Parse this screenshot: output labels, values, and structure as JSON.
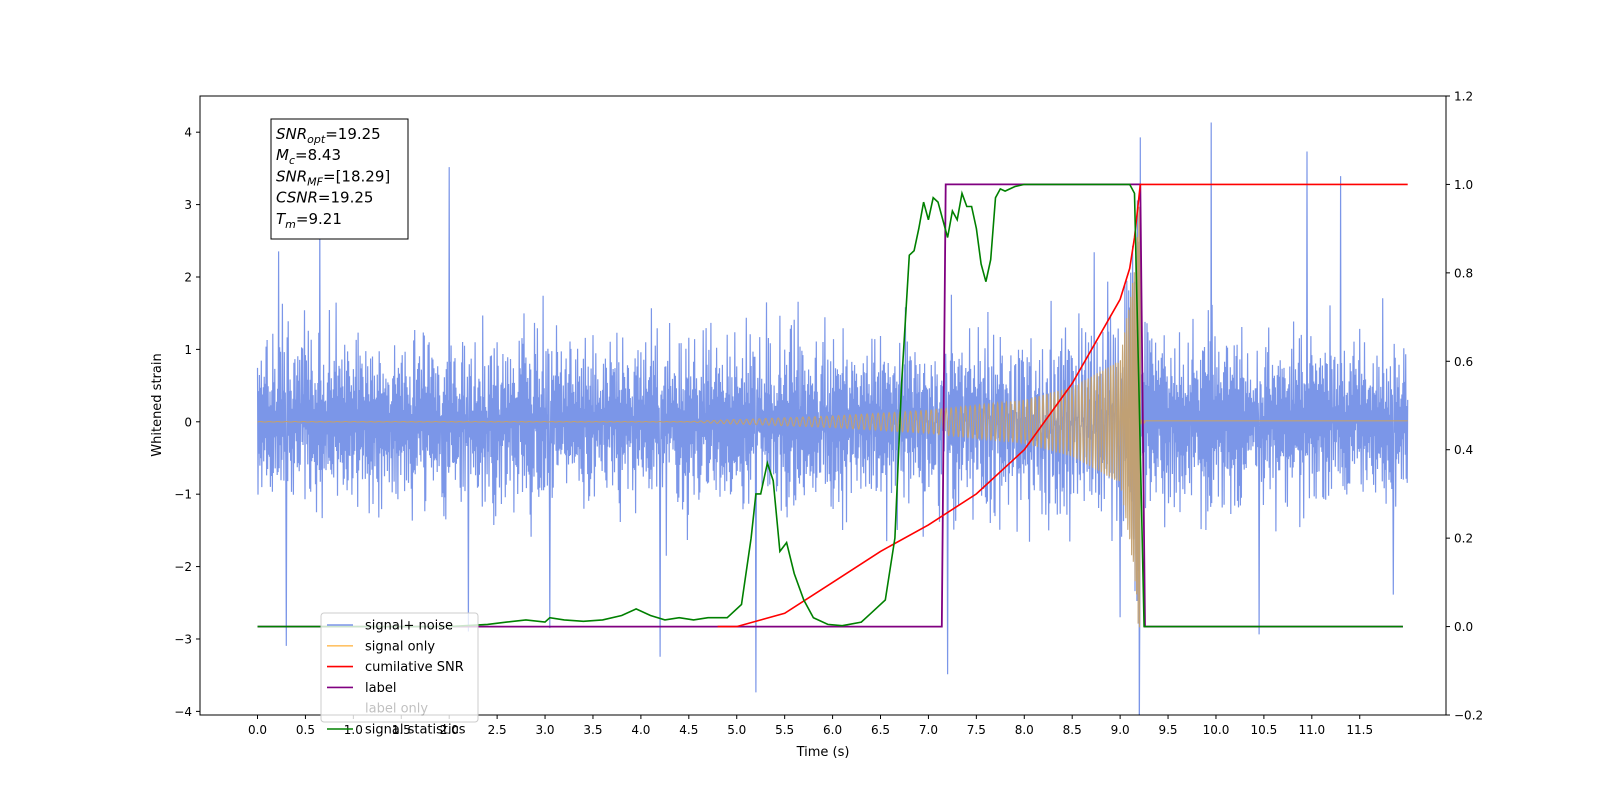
{
  "chart_data": {
    "type": "line",
    "xlabel": "Time (s)",
    "ylabel_left": "Whitened strain",
    "xlim": [
      -0.6,
      12.4
    ],
    "ylim_left": [
      -4.05,
      4.5
    ],
    "ylim_right": [
      -0.2,
      1.2
    ],
    "x_ticks": [
      0.0,
      0.5,
      1.0,
      1.5,
      2.0,
      2.5,
      3.0,
      3.5,
      4.0,
      4.5,
      5.0,
      5.5,
      6.0,
      6.5,
      7.0,
      7.5,
      8.0,
      8.5,
      9.0,
      9.5,
      10.0,
      10.5,
      11.0,
      11.5
    ],
    "x_tick_labels": [
      "0.0",
      "0.5",
      "1.0",
      "1.5",
      "2.0",
      "2.5",
      "3.0",
      "3.5",
      "4.0",
      "4.5",
      "5.0",
      "5.5",
      "6.0",
      "6.5",
      "7.0",
      "7.5",
      "8.0",
      "8.5",
      "9.0",
      "9.5",
      "10.0",
      "10.5",
      "11.0",
      "11.5"
    ],
    "y_ticks_left": [
      -4,
      -3,
      -2,
      -1,
      0,
      1,
      2,
      3,
      4
    ],
    "y_tick_labels_left": [
      "−4",
      "−3",
      "−2",
      "−1",
      "0",
      "1",
      "2",
      "3",
      "4"
    ],
    "y_ticks_right": [
      -0.2,
      0.0,
      0.2,
      0.4,
      0.6,
      0.8,
      1.0,
      1.2
    ],
    "y_tick_labels_right": [
      "−0.2",
      "0.0",
      "0.2",
      "0.4",
      "0.6",
      "0.8",
      "1.0",
      "1.2"
    ],
    "annotation_lines": [
      {
        "base": "SNR",
        "sub": "opt",
        "rest": "=19.25"
      },
      {
        "base": "M",
        "sub": "c",
        "rest": "=8.43"
      },
      {
        "base": "SNR",
        "sub": "MF",
        "rest": "=[18.29]"
      },
      {
        "base": "CSNR",
        "sub": "",
        "rest": "=19.25"
      },
      {
        "base": "T",
        "sub": "m",
        "rest": "=9.21"
      }
    ],
    "legend_position": "lower-left",
    "series": [
      {
        "name": "signal+ noise",
        "color": "#7b96e8",
        "axis": "left",
        "x_start": 0.0,
        "x_end": 12.0,
        "noise_envelope": {
          "typical_max": 2.3,
          "typical_min": -2.3
        },
        "spikes": [
          {
            "x": 0.22,
            "y": 2.35
          },
          {
            "x": 0.3,
            "y": -3.1
          },
          {
            "x": 0.65,
            "y": 2.75
          },
          {
            "x": 2.0,
            "y": 3.52
          },
          {
            "x": 2.2,
            "y": -2.9
          },
          {
            "x": 3.05,
            "y": -2.85
          },
          {
            "x": 4.2,
            "y": -3.25
          },
          {
            "x": 5.2,
            "y": -3.7
          },
          {
            "x": 7.2,
            "y": -3.45
          },
          {
            "x": 9.0,
            "y": -3.3
          },
          {
            "x": 9.1,
            "y": 3.2
          },
          {
            "x": 9.2,
            "y": -3.6
          },
          {
            "x": 9.95,
            "y": 4.12
          },
          {
            "x": 10.45,
            "y": -2.95
          },
          {
            "x": 10.95,
            "y": 3.72
          },
          {
            "x": 11.3,
            "y": 3.38
          },
          {
            "x": 11.85,
            "y": -2.4
          }
        ]
      },
      {
        "name": "signal only",
        "color": "#ffc266",
        "axis": "left",
        "chirp_start": 4.5,
        "merger_time": 9.21,
        "x_end": 12.0,
        "amplitude_points": [
          [
            5.0,
            0.03
          ],
          [
            6.0,
            0.08
          ],
          [
            7.0,
            0.16
          ],
          [
            8.0,
            0.3
          ],
          [
            8.5,
            0.48
          ],
          [
            9.0,
            0.85
          ],
          [
            9.15,
            2.1
          ],
          [
            9.21,
            3.25
          ]
        ],
        "ringdown_amplitude": 0.02
      },
      {
        "name": "cumilative SNR",
        "color": "#ff0000",
        "axis": "right",
        "x": [
          4.8,
          5.0,
          5.5,
          6.0,
          6.5,
          7.0,
          7.5,
          8.0,
          8.5,
          9.0,
          9.1,
          9.15,
          9.21,
          12.0
        ],
        "y": [
          0.0,
          0.0,
          0.03,
          0.1,
          0.17,
          0.23,
          0.3,
          0.4,
          0.55,
          0.74,
          0.81,
          0.88,
          1.0,
          1.0
        ]
      },
      {
        "name": "label",
        "color": "#800080",
        "axis": "right",
        "x": [
          0.0,
          7.14,
          7.18,
          9.21,
          9.26,
          11.95
        ],
        "y": [
          0.0,
          0.0,
          1.0,
          1.0,
          0.0,
          0.0
        ]
      },
      {
        "name": "label only",
        "color": "#ffffff",
        "axis": "right",
        "x": [],
        "y": []
      },
      {
        "name": "signal statistics",
        "color": "#008000",
        "axis": "right",
        "x": [
          0.0,
          2.0,
          2.4,
          2.6,
          2.8,
          3.0,
          3.05,
          3.2,
          3.4,
          3.6,
          3.8,
          3.95,
          4.1,
          4.25,
          4.4,
          4.55,
          4.7,
          4.9,
          5.05,
          5.15,
          5.2,
          5.25,
          5.32,
          5.38,
          5.45,
          5.52,
          5.6,
          5.7,
          5.8,
          5.95,
          6.1,
          6.3,
          6.4,
          6.55,
          6.65,
          6.72,
          6.8,
          6.85,
          6.9,
          6.95,
          7.0,
          7.05,
          7.1,
          7.15,
          7.2,
          7.25,
          7.3,
          7.35,
          7.4,
          7.45,
          7.5,
          7.55,
          7.6,
          7.65,
          7.7,
          7.75,
          7.8,
          7.85,
          7.9,
          8.0,
          8.2,
          8.4,
          8.6,
          8.8,
          9.0,
          9.1,
          9.15,
          9.2,
          9.25,
          9.3,
          9.35,
          11.95
        ],
        "y": [
          0.0,
          0.0,
          0.005,
          0.01,
          0.015,
          0.01,
          0.02,
          0.015,
          0.012,
          0.015,
          0.025,
          0.04,
          0.025,
          0.015,
          0.02,
          0.015,
          0.02,
          0.02,
          0.05,
          0.2,
          0.3,
          0.3,
          0.37,
          0.33,
          0.17,
          0.19,
          0.12,
          0.06,
          0.02,
          0.005,
          0.002,
          0.01,
          0.03,
          0.06,
          0.2,
          0.55,
          0.84,
          0.85,
          0.9,
          0.96,
          0.92,
          0.97,
          0.96,
          0.92,
          0.88,
          0.94,
          0.92,
          0.98,
          0.95,
          0.95,
          0.9,
          0.82,
          0.78,
          0.83,
          0.97,
          0.99,
          0.985,
          0.99,
          0.995,
          1.0,
          1.0,
          1.0,
          1.0,
          1.0,
          1.0,
          1.0,
          0.98,
          0.5,
          0.0,
          0.0,
          0.0,
          0.0
        ]
      }
    ]
  }
}
